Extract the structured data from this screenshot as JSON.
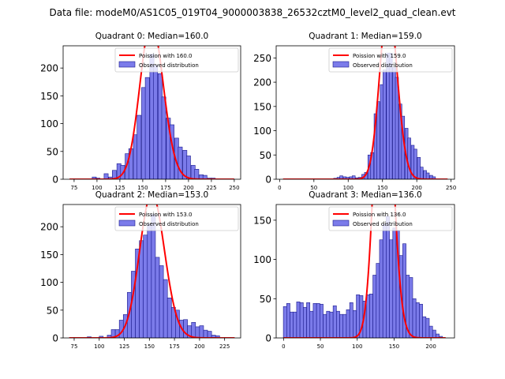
{
  "figure": {
    "suptitle": "Data file: modeM0/AS1C05_019T04_9000003838_26532cztM0_level2_quad_clean.evt"
  },
  "colors": {
    "bar_fill": "#7b7bea",
    "bar_edge": "#1a1a8c",
    "poisson_line": "#ff0000"
  },
  "chart_data": [
    {
      "type": "bar",
      "title": "Quadrant 0: Median=160.0",
      "xlim": [
        63,
        257
      ],
      "ylim": [
        0,
        240
      ],
      "xticks": [
        75,
        100,
        125,
        150,
        175,
        200,
        225,
        250
      ],
      "yticks": [
        0,
        50,
        100,
        150,
        200
      ],
      "bin_width": 4.5,
      "median": 160.0,
      "legend": {
        "position": "top-right",
        "poisson_label": "Poission with 160.0",
        "observed_label": "Observed distribution"
      },
      "series": [
        {
          "name": "Observed distribution",
          "bins": [
            [
              97,
              4
            ],
            [
              101,
              2
            ],
            [
              110,
              10
            ],
            [
              115,
              4
            ],
            [
              119,
              16
            ],
            [
              124,
              28
            ],
            [
              128,
              25
            ],
            [
              133,
              46
            ],
            [
              137,
              55
            ],
            [
              142,
              80
            ],
            [
              146,
              115
            ],
            [
              151,
              165
            ],
            [
              155,
              183
            ],
            [
              160,
              225
            ],
            [
              164,
              205
            ],
            [
              169,
              190
            ],
            [
              173,
              148
            ],
            [
              178,
              110
            ],
            [
              182,
              98
            ],
            [
              187,
              74
            ],
            [
              191,
              58
            ],
            [
              196,
              52
            ],
            [
              200,
              42
            ],
            [
              205,
              25
            ],
            [
              209,
              18
            ],
            [
              214,
              8
            ],
            [
              218,
              7
            ],
            [
              223,
              2
            ],
            [
              227,
              2
            ],
            [
              232,
              1
            ]
          ]
        }
      ],
      "poisson_lambda": 160.0,
      "poisson_x_range": [
        70,
        250
      ]
    },
    {
      "type": "bar",
      "title": "Quadrant 1: Median=159.0",
      "xlim": [
        -5,
        255
      ],
      "ylim": [
        0,
        275
      ],
      "xticks": [
        0,
        50,
        100,
        150,
        200,
        250
      ],
      "yticks": [
        0,
        50,
        100,
        150,
        200,
        250
      ],
      "bin_width": 4.5,
      "median": 159.0,
      "legend": {
        "position": "top-right",
        "poisson_label": "Poission with 159.0",
        "observed_label": "Observed distribution"
      },
      "series": [
        {
          "name": "Observed distribution",
          "bins": [
            [
              81,
              2
            ],
            [
              86,
              4
            ],
            [
              90,
              7
            ],
            [
              95,
              5
            ],
            [
              99,
              4
            ],
            [
              104,
              5
            ],
            [
              108,
              7
            ],
            [
              113,
              3
            ],
            [
              117,
              4
            ],
            [
              122,
              10
            ],
            [
              126,
              14
            ],
            [
              131,
              50
            ],
            [
              135,
              55
            ],
            [
              140,
              135
            ],
            [
              144,
              160
            ],
            [
              149,
              195
            ],
            [
              153,
              225
            ],
            [
              158,
              260
            ],
            [
              162,
              260
            ],
            [
              167,
              230
            ],
            [
              171,
              210
            ],
            [
              176,
              155
            ],
            [
              180,
              130
            ],
            [
              185,
              105
            ],
            [
              189,
              85
            ],
            [
              194,
              70
            ],
            [
              198,
              62
            ],
            [
              203,
              45
            ],
            [
              207,
              25
            ],
            [
              212,
              18
            ],
            [
              216,
              13
            ],
            [
              221,
              8
            ],
            [
              225,
              5
            ]
          ]
        }
      ],
      "poisson_lambda": 159.0,
      "poisson_x_range": [
        5,
        245
      ]
    },
    {
      "type": "bar",
      "title": "Quadrant 2: Median=153.0",
      "xlim": [
        64,
        241
      ],
      "ylim": [
        0,
        240
      ],
      "xticks": [
        75,
        100,
        125,
        150,
        175,
        200,
        225
      ],
      "yticks": [
        0,
        50,
        100,
        150,
        200
      ],
      "bin_width": 4.0,
      "median": 153.0,
      "legend": {
        "position": "top-right",
        "poisson_label": "Poission with 153.0",
        "observed_label": "Observed distribution"
      },
      "series": [
        {
          "name": "Observed distribution",
          "bins": [
            [
              90,
              2
            ],
            [
              94,
              1
            ],
            [
              102,
              3
            ],
            [
              110,
              5
            ],
            [
              114,
              15
            ],
            [
              118,
              15
            ],
            [
              122,
              32
            ],
            [
              126,
              42
            ],
            [
              130,
              82
            ],
            [
              134,
              120
            ],
            [
              138,
              160
            ],
            [
              142,
              175
            ],
            [
              146,
              185
            ],
            [
              150,
              205
            ],
            [
              154,
              222
            ],
            [
              158,
              145
            ],
            [
              162,
              130
            ],
            [
              166,
              105
            ],
            [
              170,
              72
            ],
            [
              174,
              55
            ],
            [
              178,
              50
            ],
            [
              182,
              32
            ],
            [
              186,
              33
            ],
            [
              190,
              22
            ],
            [
              194,
              28
            ],
            [
              198,
              20
            ],
            [
              202,
              22
            ],
            [
              206,
              14
            ],
            [
              210,
              12
            ],
            [
              214,
              5
            ],
            [
              218,
              4
            ],
            [
              222,
              1
            ]
          ]
        }
      ],
      "poisson_lambda": 153.0,
      "poisson_x_range": [
        70,
        235
      ]
    },
    {
      "type": "bar",
      "title": "Quadrant 3: Median=136.0",
      "xlim": [
        -10,
        232
      ],
      "ylim": [
        0,
        170
      ],
      "xticks": [
        0,
        50,
        100,
        150,
        200
      ],
      "yticks": [
        0,
        50,
        100,
        150
      ],
      "bin_width": 4.5,
      "median": 136.0,
      "legend": {
        "position": "top-right",
        "poisson_label": "Poission with 136.0",
        "observed_label": "Observed distribution"
      },
      "series": [
        {
          "name": "Observed distribution",
          "bins": [
            [
              2,
              40
            ],
            [
              6.5,
              44
            ],
            [
              11,
              33
            ],
            [
              15.5,
              33
            ],
            [
              20,
              46
            ],
            [
              24.5,
              45
            ],
            [
              29,
              39
            ],
            [
              33.5,
              45
            ],
            [
              38,
              34
            ],
            [
              42.5,
              44
            ],
            [
              47,
              44
            ],
            [
              51.5,
              43
            ],
            [
              56,
              30
            ],
            [
              60.5,
              34
            ],
            [
              65,
              33
            ],
            [
              69.5,
              41
            ],
            [
              74,
              34
            ],
            [
              78.5,
              30
            ],
            [
              83,
              30
            ],
            [
              87.5,
              36
            ],
            [
              92,
              45
            ],
            [
              96.5,
              35
            ],
            [
              101,
              55
            ],
            [
              105.5,
              54
            ],
            [
              110,
              47
            ],
            [
              114.5,
              55
            ],
            [
              119,
              56
            ],
            [
              123.5,
              80
            ],
            [
              128,
              95
            ],
            [
              132.5,
              125
            ],
            [
              137,
              145
            ],
            [
              141.5,
              155
            ],
            [
              146,
              125
            ],
            [
              150.5,
              140
            ],
            [
              155,
              137
            ],
            [
              159.5,
              105
            ],
            [
              164,
              120
            ],
            [
              168.5,
              80
            ],
            [
              173,
              77
            ],
            [
              177.5,
              50
            ],
            [
              182,
              45
            ],
            [
              186.5,
              43
            ],
            [
              191,
              27
            ],
            [
              195.5,
              25
            ],
            [
              200,
              15
            ],
            [
              204.5,
              10
            ],
            [
              209,
              5
            ],
            [
              213.5,
              2
            ]
          ]
        }
      ],
      "poisson_lambda": 136.0,
      "poisson_x_range": [
        0,
        220
      ]
    }
  ]
}
